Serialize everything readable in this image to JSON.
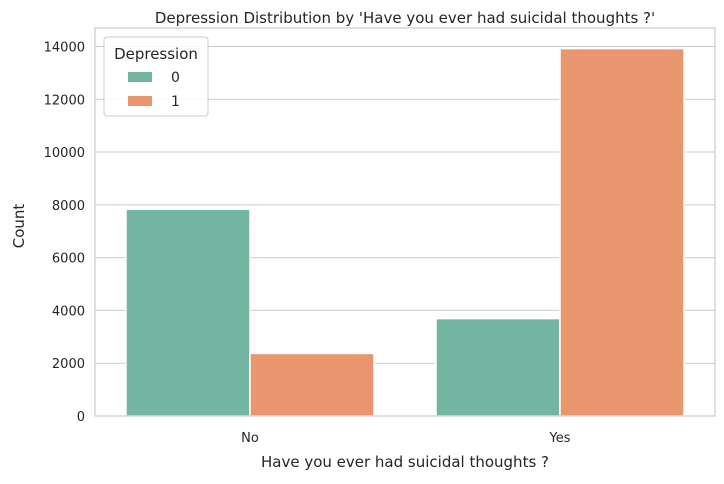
{
  "chart_data": {
    "type": "bar",
    "title": "Depression Distribution by 'Have you ever had suicidal thoughts ?'",
    "xlabel": "Have you ever had suicidal thoughts ?",
    "ylabel": "Count",
    "categories": [
      "No",
      "Yes"
    ],
    "series": [
      {
        "name": "0",
        "color": "#72b6a1",
        "values": [
          7830,
          3690
        ]
      },
      {
        "name": "1",
        "color": "#e9966f",
        "values": [
          2370,
          13920
        ]
      }
    ],
    "ylim": [
      0,
      14700
    ],
    "yticks": [
      0,
      2000,
      4000,
      6000,
      8000,
      10000,
      12000,
      14000
    ],
    "ytick_labels": [
      "0",
      "2000",
      "4000",
      "6000",
      "8000",
      "10000",
      "12000",
      "14000"
    ],
    "grid": true,
    "legend": {
      "title": "Depression",
      "position": "top-left"
    }
  }
}
